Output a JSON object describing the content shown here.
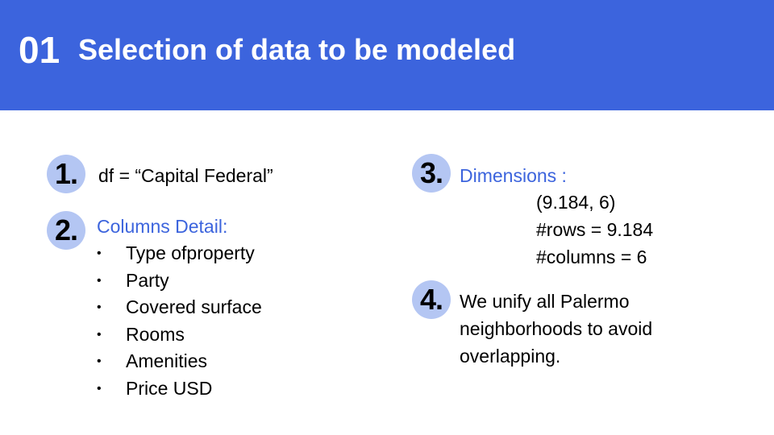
{
  "header": {
    "number": "01",
    "title": "Selection of data to be modeled"
  },
  "colors": {
    "header_bg": "#3c64dd",
    "badge_bg": "#b4c6f3",
    "accent_text": "#3c64dd"
  },
  "items": [
    {
      "badge": "1.",
      "text": "df = “Capital Federal”"
    },
    {
      "badge": "2.",
      "heading": "Columns Detail:",
      "bullet": "•",
      "bullets": [
        "Type ofproperty",
        "Party",
        "Covered surface",
        "Rooms",
        "Amenities",
        "Price USD"
      ]
    },
    {
      "badge": "3.",
      "heading": "Dimensions :",
      "lines": [
        "(9.184, 6)",
        "#rows = 9.184",
        "#columns = 6"
      ]
    },
    {
      "badge": "4.",
      "lines": [
        "We unify all Palermo",
        "neighborhoods to avoid",
        "overlapping."
      ]
    }
  ]
}
